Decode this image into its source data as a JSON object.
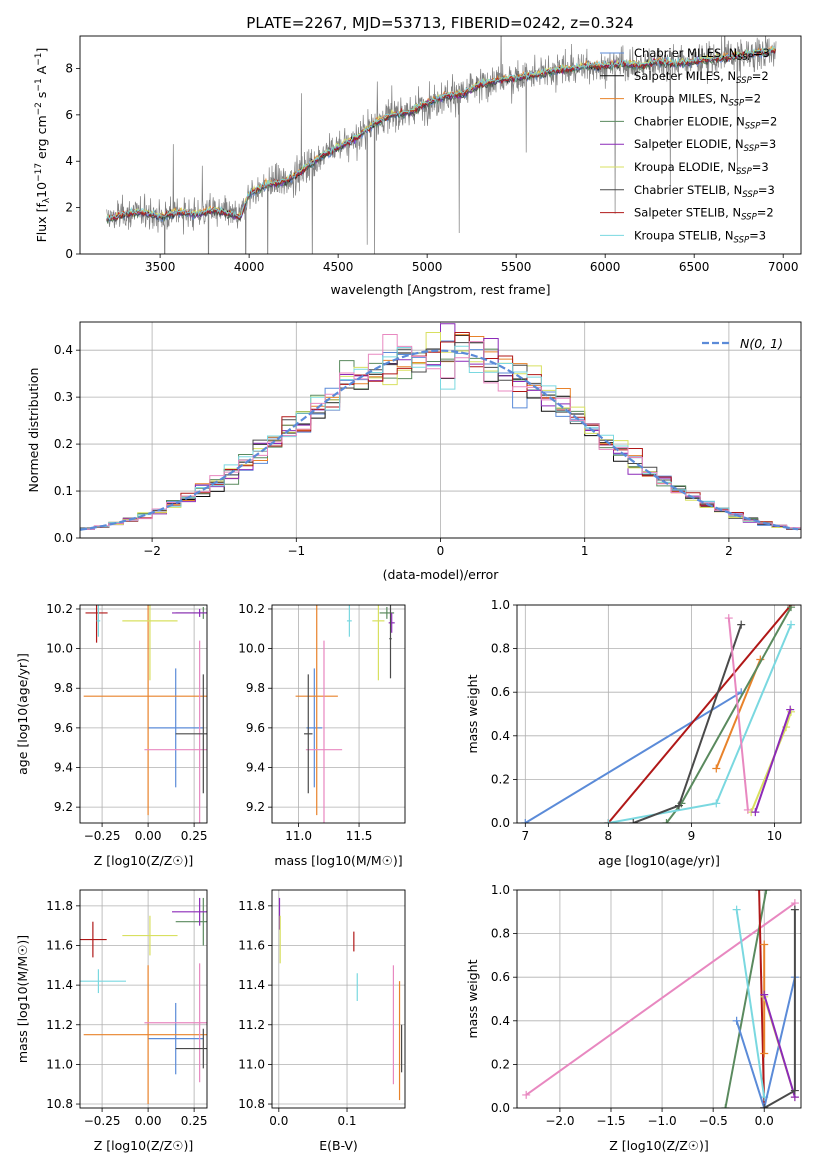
{
  "figure": {
    "title": "PLATE=2267, MJD=53713, FIBERID=0242, z=0.324"
  },
  "colors": {
    "Chabrier MILES": "#5b8bd8",
    "Salpeter MILES": "#0a0a0a",
    "Kroupa MILES": "#e8822a",
    "Chabrier ELODIE": "#5a8a5e",
    "Salpeter ELODIE": "#8c2ab8",
    "Kroupa ELODIE": "#d8e060",
    "Chabrier STELIB": "#4a4a4a",
    "Salpeter STELIB": "#b01818",
    "Kroupa STELIB": "#7ad8e0",
    "pink": "#e888c0",
    "gaussian": "#5b8bd8",
    "observed": "#808080"
  },
  "chart_data": [
    {
      "id": "spectrum",
      "type": "line",
      "title": "PLATE=2267, MJD=53713, FIBERID=0242, z=0.324",
      "xlabel": "wavelength [Angstrom, rest frame]",
      "ylabel": "Flux [f_λ 10^-17 erg cm^-2 s^-1 A^-1]",
      "xlim": [
        3050,
        7100
      ],
      "ylim": [
        0,
        9.4
      ],
      "xticks": [
        "3500",
        "4000",
        "4500",
        "5000",
        "5500",
        "6000",
        "6500",
        "7000"
      ],
      "yticks": [
        "0",
        "2",
        "4",
        "6",
        "8"
      ],
      "legend_position": "right",
      "legend": [
        {
          "name": "Chabrier MILES, N_SSP=3",
          "prefix": "Chabrier MILES, N",
          "sub": "SSP",
          "suffix": "=3"
        },
        {
          "name": "Salpeter MILES, N_SSP=2",
          "prefix": "Salpeter MILES, N",
          "sub": "SSP",
          "suffix": "=2"
        },
        {
          "name": "Kroupa MILES, N_SSP=2",
          "prefix": "Kroupa MILES, N",
          "sub": "SSP",
          "suffix": "=2"
        },
        {
          "name": "Chabrier ELODIE, N_SSP=2",
          "prefix": "Chabrier ELODIE, N",
          "sub": "SSP",
          "suffix": "=2"
        },
        {
          "name": "Salpeter ELODIE, N_SSP=3",
          "prefix": "Salpeter ELODIE, N",
          "sub": "SSP",
          "suffix": "=3"
        },
        {
          "name": "Kroupa ELODIE, N_SSP=3",
          "prefix": "Kroupa ELODIE, N",
          "sub": "SSP",
          "suffix": "=3"
        },
        {
          "name": "Chabrier STELIB, N_SSP=3",
          "prefix": "Chabrier STELIB, N",
          "sub": "SSP",
          "suffix": "=3"
        },
        {
          "name": "Salpeter STELIB, N_SSP=2",
          "prefix": "Salpeter STELIB, N",
          "sub": "SSP",
          "suffix": "=2"
        },
        {
          "name": "Kroupa STELIB, N_SSP=3",
          "prefix": "Kroupa STELIB, N",
          "sub": "SSP",
          "suffix": "=3"
        }
      ],
      "model_trend": [
        [
          3200,
          1.5
        ],
        [
          3300,
          1.7
        ],
        [
          3400,
          1.8
        ],
        [
          3500,
          1.6
        ],
        [
          3600,
          1.8
        ],
        [
          3700,
          1.7
        ],
        [
          3800,
          1.9
        ],
        [
          3900,
          1.7
        ],
        [
          3950,
          1.6
        ],
        [
          4000,
          2.6
        ],
        [
          4100,
          3.0
        ],
        [
          4200,
          3.1
        ],
        [
          4300,
          3.6
        ],
        [
          4400,
          4.2
        ],
        [
          4500,
          4.6
        ],
        [
          4600,
          5.0
        ],
        [
          4700,
          5.6
        ],
        [
          4800,
          6.0
        ],
        [
          4900,
          6.1
        ],
        [
          5000,
          6.5
        ],
        [
          5100,
          6.8
        ],
        [
          5200,
          6.9
        ],
        [
          5300,
          7.3
        ],
        [
          5400,
          7.5
        ],
        [
          5500,
          7.6
        ],
        [
          5600,
          7.7
        ],
        [
          5700,
          7.9
        ],
        [
          5800,
          8.0
        ],
        [
          5900,
          8.1
        ],
        [
          6000,
          8.1
        ],
        [
          6100,
          8.2
        ],
        [
          6200,
          8.1
        ],
        [
          6300,
          8.3
        ],
        [
          6400,
          8.2
        ],
        [
          6500,
          8.3
        ],
        [
          6600,
          8.4
        ],
        [
          6700,
          8.5
        ],
        [
          6800,
          8.6
        ],
        [
          6900,
          8.7
        ],
        [
          6950,
          8.8
        ]
      ],
      "observed_range": [
        3200,
        6960
      ]
    },
    {
      "id": "residuals",
      "type": "histogram",
      "xlabel": "(data-model)/error",
      "ylabel": "Normed distribution",
      "xlim": [
        -2.5,
        2.5
      ],
      "ylim": [
        0,
        0.46
      ],
      "xticks": [
        "−2",
        "−1",
        "0",
        "1",
        "2"
      ],
      "yticks": [
        "0.0",
        "0.1",
        "0.2",
        "0.3",
        "0.4"
      ],
      "legend": "N(0, 1)",
      "legend_position": "top-right",
      "bin_width": 0.1
    },
    {
      "id": "age_vs_Z",
      "type": "errorbar",
      "xlabel": "Z [log10(Z/Z☉)]",
      "ylabel": "age [log10(age/yr)]",
      "xlim": [
        -0.37,
        0.32
      ],
      "ylim": [
        9.12,
        10.22
      ],
      "xticks": [
        "−0.25",
        "0.00",
        "0.25"
      ],
      "yticks": [
        "9.2",
        "9.4",
        "9.6",
        "9.8",
        "10.0",
        "10.2"
      ],
      "points": [
        {
          "c": "Chabrier MILES",
          "x": 0.15,
          "xerr": 0.3,
          "y": 9.6,
          "yerr": 0.3
        },
        {
          "c": "Kroupa MILES",
          "x": 0.0,
          "xerr": 0.7,
          "y": 9.76,
          "yerr": 0.6
        },
        {
          "c": "pink",
          "x": 0.28,
          "xerr": 0.6,
          "y": 9.49,
          "yerr": 0.55
        },
        {
          "c": "Chabrier STELIB",
          "x": 0.3,
          "xerr": 0.3,
          "y": 9.57,
          "yerr": 0.3
        },
        {
          "c": "Salpeter STELIB",
          "x": -0.28,
          "xerr": 0.12,
          "y": 10.18,
          "yerr": 0.15
        },
        {
          "c": "Kroupa STELIB",
          "x": -0.27,
          "xerr": 0.02,
          "y": 10.14,
          "yerr": 0.08
        },
        {
          "c": "Kroupa ELODIE",
          "x": 0.01,
          "xerr": 0.3,
          "y": 10.14,
          "yerr": 0.3
        },
        {
          "c": "Chabrier ELODIE",
          "x": 0.3,
          "xerr": 0.3,
          "y": 10.18,
          "yerr": 0.03
        },
        {
          "c": "Salpeter ELODIE",
          "x": 0.28,
          "xerr": 0.3,
          "y": 10.18,
          "yerr": 0.02
        }
      ]
    },
    {
      "id": "age_vs_mass",
      "type": "errorbar",
      "xlabel": "mass [log10(M/M☉)]",
      "ylabel": "",
      "xlim": [
        10.78,
        11.88
      ],
      "ylim": [
        9.12,
        10.22
      ],
      "xticks": [
        "11.0",
        "11.5"
      ],
      "yticks": [
        "9.2",
        "9.4",
        "9.6",
        "9.8",
        "10.0",
        "10.2"
      ],
      "points": [
        {
          "c": "Chabrier MILES",
          "x": 11.13,
          "xerr": 0.13,
          "y": 9.6,
          "yerr": 0.3
        },
        {
          "c": "Kroupa MILES",
          "x": 11.15,
          "xerr": 0.35,
          "y": 9.76,
          "yerr": 0.6
        },
        {
          "c": "pink",
          "x": 11.21,
          "xerr": 0.3,
          "y": 9.49,
          "yerr": 0.55
        },
        {
          "c": "Chabrier STELIB",
          "x": 11.08,
          "xerr": 0.07,
          "y": 9.57,
          "yerr": 0.3
        },
        {
          "c": "Kroupa STELIB",
          "x": 11.42,
          "xerr": 0.04,
          "y": 10.14,
          "yerr": 0.08
        },
        {
          "c": "Kroupa ELODIE",
          "x": 11.66,
          "xerr": 0.1,
          "y": 10.14,
          "yerr": 0.3
        },
        {
          "c": "Chabrier ELODIE",
          "x": 11.73,
          "xerr": 0.12,
          "y": 10.18,
          "yerr": 0.03
        },
        {
          "c": "Salpeter ELODIE",
          "x": 11.77,
          "xerr": 0.05,
          "y": 10.13,
          "yerr": 0.05
        },
        {
          "c": "Chabrier STELIB",
          "x": 11.76,
          "xerr": 0.02,
          "y": 10.05,
          "yerr": 0.2
        }
      ]
    },
    {
      "id": "weight_vs_age",
      "type": "line",
      "xlabel": "age [log10(age/yr)]",
      "ylabel": "mass weight",
      "xlim": [
        6.9,
        10.32
      ],
      "ylim": [
        0,
        1.0
      ],
      "xticks": [
        "7",
        "8",
        "9",
        "10"
      ],
      "yticks": [
        "0.0",
        "0.2",
        "0.4",
        "0.6",
        "0.8",
        "1.0"
      ],
      "series": [
        {
          "c": "Chabrier MILES",
          "x": [
            7.0,
            9.6
          ],
          "y": [
            0.0,
            0.6
          ]
        },
        {
          "c": "Kroupa MILES",
          "x": [
            9.3,
            9.83
          ],
          "y": [
            0.25,
            0.75
          ]
        },
        {
          "c": "Salpeter STELIB",
          "x": [
            8.0,
            10.2
          ],
          "y": [
            0.0,
            1.0
          ]
        },
        {
          "c": "Chabrier ELODIE",
          "x": [
            8.7,
            8.88,
            10.2
          ],
          "y": [
            0.0,
            0.09,
            0.99
          ]
        },
        {
          "c": "Kroupa STELIB",
          "x": [
            8.0,
            9.3,
            10.2
          ],
          "y": [
            0.0,
            0.09,
            0.91
          ]
        },
        {
          "c": "Kroupa ELODIE",
          "x": [
            9.72,
            10.14,
            10.2
          ],
          "y": [
            0.05,
            0.44,
            0.51
          ]
        },
        {
          "c": "Salpeter ELODIE",
          "x": [
            9.77,
            10.19
          ],
          "y": [
            0.05,
            0.52
          ]
        },
        {
          "c": "Chabrier STELIB",
          "x": [
            8.3,
            8.85,
            9.6
          ],
          "y": [
            0.0,
            0.08,
            0.91
          ]
        },
        {
          "c": "pink",
          "x": [
            9.45,
            9.68
          ],
          "y": [
            0.94,
            0.06
          ]
        }
      ]
    },
    {
      "id": "mass_vs_Z",
      "type": "errorbar",
      "xlabel": "Z [log10(Z/Z☉)]",
      "ylabel": "mass [log10(M/M☉)]",
      "xlim": [
        -0.37,
        0.32
      ],
      "ylim": [
        10.78,
        11.88
      ],
      "xticks": [
        "−0.25",
        "0.00",
        "0.25"
      ],
      "yticks": [
        "10.8",
        "11.0",
        "11.2",
        "11.4",
        "11.6",
        "11.8"
      ],
      "points": [
        {
          "c": "Chabrier MILES",
          "x": 0.15,
          "xerr": 0.3,
          "y": 11.13,
          "yerr": 0.18
        },
        {
          "c": "Kroupa MILES",
          "x": 0.0,
          "xerr": 0.7,
          "y": 11.15,
          "yerr": 0.35
        },
        {
          "c": "pink",
          "x": 0.28,
          "xerr": 0.6,
          "y": 11.21,
          "yerr": 0.3
        },
        {
          "c": "Chabrier STELIB",
          "x": 0.3,
          "xerr": 0.3,
          "y": 11.08,
          "yerr": 0.1
        },
        {
          "c": "Salpeter STELIB",
          "x": -0.3,
          "xerr": 0.15,
          "y": 11.63,
          "yerr": 0.09
        },
        {
          "c": "Kroupa STELIB",
          "x": -0.27,
          "xerr": 0.3,
          "y": 11.42,
          "yerr": 0.06
        },
        {
          "c": "Kroupa ELODIE",
          "x": 0.01,
          "xerr": 0.3,
          "y": 11.65,
          "yerr": 0.1
        },
        {
          "c": "Chabrier ELODIE",
          "x": 0.3,
          "xerr": 0.3,
          "y": 11.72,
          "yerr": 0.12
        },
        {
          "c": "Salpeter ELODIE",
          "x": 0.28,
          "xerr": 0.3,
          "y": 11.77,
          "yerr": 0.07
        }
      ]
    },
    {
      "id": "mass_vs_ebv",
      "type": "errorbar",
      "xlabel": "E(B-V)",
      "ylabel": "",
      "xlim": [
        -0.01,
        0.185
      ],
      "ylim": [
        10.78,
        11.88
      ],
      "xticks": [
        "0.0",
        "0.1"
      ],
      "yticks": [
        "10.8",
        "11.0",
        "11.2",
        "11.4",
        "11.6",
        "11.8"
      ],
      "points": [
        {
          "c": "Salpeter ELODIE",
          "x": 0.001,
          "y": 11.76,
          "yerr": 0.08
        },
        {
          "c": "Kroupa ELODIE",
          "x": 0.002,
          "y": 11.63,
          "yerr": 0.12
        },
        {
          "c": "Salpeter STELIB",
          "x": 0.11,
          "y": 11.62,
          "yerr": 0.05
        },
        {
          "c": "Kroupa STELIB",
          "x": 0.115,
          "y": 11.39,
          "yerr": 0.07
        },
        {
          "c": "pink",
          "x": 0.168,
          "y": 11.2,
          "yerr": 0.3
        },
        {
          "c": "Kroupa MILES",
          "x": 0.177,
          "y": 11.12,
          "yerr": 0.3
        },
        {
          "c": "Chabrier STELIB",
          "x": 0.18,
          "y": 11.08,
          "yerr": 0.12
        }
      ]
    },
    {
      "id": "weight_vs_Z",
      "type": "line",
      "xlabel": "Z [log10(Z/Z☉)]",
      "ylabel": "mass weight",
      "xlim": [
        -2.42,
        0.36
      ],
      "ylim": [
        0,
        1.0
      ],
      "xticks": [
        "−2.0",
        "−1.5",
        "−1.0",
        "−0.5",
        "0.0"
      ],
      "yticks": [
        "0.0",
        "0.2",
        "0.4",
        "0.6",
        "0.8",
        "1.0"
      ],
      "series": [
        {
          "c": "pink",
          "x": [
            -2.33,
            0.3
          ],
          "y": [
            0.06,
            0.94
          ]
        },
        {
          "c": "Chabrier ELODIE",
          "x": [
            -0.38,
            0.02
          ],
          "y": [
            0.0,
            1.0
          ]
        },
        {
          "c": "Salpeter STELIB",
          "x": [
            -0.05,
            0.0
          ],
          "y": [
            1.0,
            0.0
          ]
        },
        {
          "c": "Kroupa STELIB",
          "x": [
            -0.27,
            0.0
          ],
          "y": [
            0.91,
            0.05
          ]
        },
        {
          "c": "Chabrier MILES",
          "x": [
            -0.27,
            0.0,
            0.3
          ],
          "y": [
            0.4,
            0.0,
            0.6
          ]
        },
        {
          "c": "Kroupa MILES",
          "x": [
            0.0,
            0.0
          ],
          "y": [
            0.25,
            0.75
          ]
        },
        {
          "c": "Kroupa ELODIE",
          "x": [
            0.0,
            0.3
          ],
          "y": [
            0.51,
            0.05
          ]
        },
        {
          "c": "Salpeter ELODIE",
          "x": [
            0.0,
            0.3
          ],
          "y": [
            0.52,
            0.05
          ]
        },
        {
          "c": "Chabrier STELIB",
          "x": [
            0.0,
            0.3,
            0.3
          ],
          "y": [
            0.0,
            0.08,
            0.91
          ]
        }
      ]
    }
  ]
}
